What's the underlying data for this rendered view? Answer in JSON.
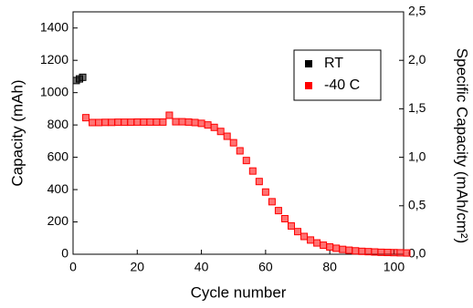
{
  "chart_data": {
    "type": "scatter",
    "xlabel": "Cycle number",
    "ylabel": "Capacity (mAh)",
    "y2label": "Specific Capacity (mAh/cm²)",
    "xlim": [
      0,
      103
    ],
    "xticks": [
      0,
      20,
      40,
      60,
      80,
      100
    ],
    "ylim": [
      0,
      1500
    ],
    "yticks": [
      0,
      200,
      400,
      600,
      800,
      1000,
      1200,
      1400
    ],
    "y2lim": [
      0,
      2.5
    ],
    "y2ticks": [
      {
        "value": 0,
        "label": "0,0"
      },
      {
        "value": 0.5,
        "label": "0,5"
      },
      {
        "value": 1,
        "label": "1,0"
      },
      {
        "value": 1.5,
        "label": "1,5"
      },
      {
        "value": 2,
        "label": "2,0"
      },
      {
        "value": 2.5,
        "label": "2,5"
      }
    ],
    "legend": "upper right",
    "series": [
      {
        "name": "RT",
        "color": "#000000",
        "x": [
          1,
          2,
          3
        ],
        "values": [
          1075,
          1085,
          1095
        ]
      },
      {
        "name": "-40 C",
        "color": "#ff0000",
        "x": [
          4,
          6,
          8,
          10,
          12,
          14,
          16,
          18,
          20,
          22,
          24,
          26,
          28,
          30,
          32,
          34,
          36,
          38,
          40,
          42,
          44,
          46,
          48,
          50,
          52,
          54,
          56,
          58,
          60,
          62,
          64,
          66,
          68,
          70,
          72,
          74,
          76,
          78,
          80,
          82,
          84,
          86,
          88,
          90,
          92,
          94,
          96,
          98,
          100,
          102,
          104
        ],
        "values": [
          845,
          815,
          815,
          816,
          816,
          817,
          817,
          817,
          818,
          818,
          818,
          818,
          818,
          860,
          820,
          820,
          818,
          815,
          810,
          800,
          785,
          760,
          730,
          690,
          640,
          580,
          515,
          450,
          385,
          325,
          270,
          220,
          175,
          140,
          110,
          88,
          70,
          56,
          45,
          37,
          30,
          25,
          21,
          18,
          16,
          14,
          12,
          11,
          10,
          9,
          8
        ]
      }
    ]
  }
}
